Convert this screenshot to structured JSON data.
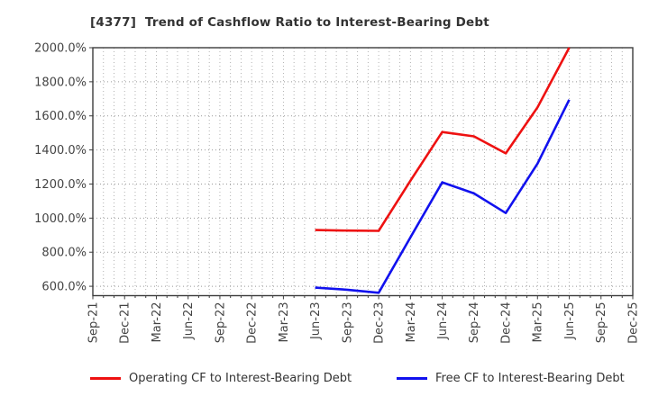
{
  "title": "[4377]  Trend of Cashflow Ratio to Interest-Bearing Debt",
  "chart_data": {
    "type": "line",
    "title": "[4377]  Trend of Cashflow Ratio to Interest-Bearing Debt",
    "categories": [
      "Sep-21",
      "Dec-21",
      "Mar-22",
      "Jun-22",
      "Sep-22",
      "Dec-22",
      "Mar-23",
      "Jun-23",
      "Sep-23",
      "Dec-23",
      "Mar-24",
      "Jun-24",
      "Sep-24",
      "Dec-24",
      "Mar-25",
      "Jun-25",
      "Sep-25",
      "Dec-25"
    ],
    "series": [
      {
        "name": "Operating CF to Interest-Bearing Debt",
        "color": "#ee1111",
        "values": [
          null,
          null,
          null,
          null,
          null,
          null,
          null,
          930,
          927,
          925,
          1220,
          1505,
          1480,
          1380,
          1650,
          2000,
          null,
          null
        ]
      },
      {
        "name": "Free CF to Interest-Bearing Debt",
        "color": "#1111ee",
        "values": [
          null,
          null,
          null,
          null,
          null,
          null,
          null,
          592,
          580,
          562,
          888,
          1210,
          1145,
          1030,
          1320,
          1695,
          null,
          null
        ]
      }
    ],
    "ylabel": "",
    "xlabel": "",
    "ylim": [
      545,
      2000
    ],
    "ytick_values": [
      600,
      800,
      1000,
      1200,
      1400,
      1600,
      1800,
      2000
    ],
    "ytick_labels": [
      "600.0%",
      "800.0%",
      "1000.0%",
      "1200.0%",
      "1400.0%",
      "1600.0%",
      "1800.0%",
      "2000.0%"
    ],
    "x_minor_divisions_per_interval": 3,
    "grid": true,
    "legend_position": "bottom"
  },
  "style": {
    "frame_color": "#3c3c3c",
    "grid_color_h": "#999999",
    "grid_color_v": "#aaaaaa",
    "tick_color": "#3c3c3c",
    "tick_label_color": "#444444",
    "title_color": "#333333",
    "background": "#ffffff"
  }
}
